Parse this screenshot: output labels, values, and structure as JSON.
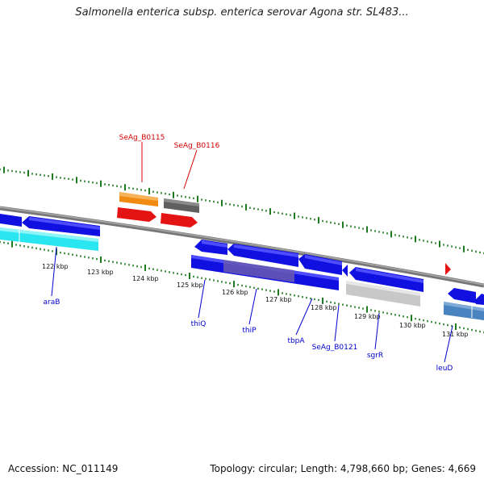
{
  "title": "Salmonella enterica subsp. enterica serovar Agona str. SL483...",
  "footer": {
    "accession": "Accession: NC_011149",
    "topology": "Topology: circular; Length: 4,798,660 bp; Genes: 4,669"
  },
  "colors": {
    "blue_gene": "#1010e0",
    "red_gene": "#e51414",
    "orange_gene": "#f08a10",
    "dark_gray_gene": "#5f5f5f",
    "cyan_gene": "#29e6f0",
    "light_gray_gene": "#c8c8c8",
    "steel_blue_gene": "#4a84c0",
    "purple_overlay": "#6a5ab0",
    "backbone": "#888888",
    "tick_green": "#1e7a1e",
    "label_blue": "#0000cc",
    "label_red": "#d40000"
  },
  "tick_labels": [
    "122 kbp",
    "123 kbp",
    "124 kbp",
    "125 kbp",
    "126 kbp",
    "127 kbp",
    "128 kbp",
    "129 kbp",
    "130 kbp",
    "131 kbp"
  ],
  "gene_labels": [
    "SeAg_B0115",
    "SeAg_B0116",
    "araB",
    "thiQ",
    "thiP",
    "tbpA",
    "SeAg_B0121",
    "sgrR",
    "leuD"
  ]
}
